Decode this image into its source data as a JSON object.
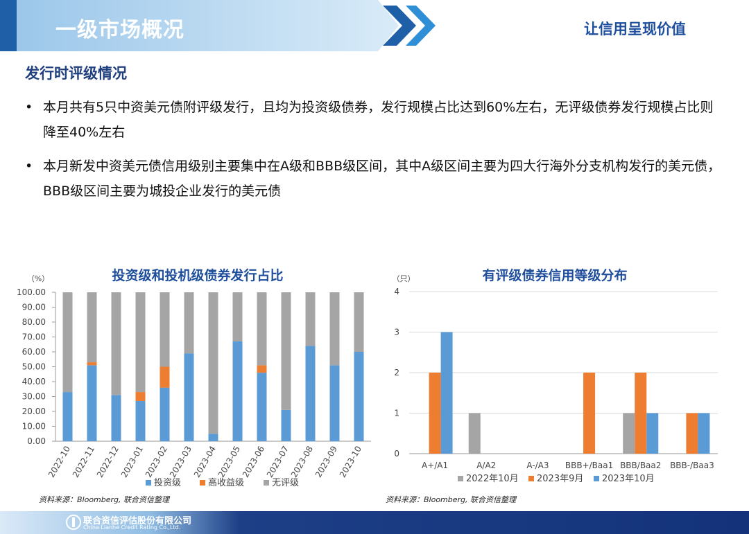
{
  "header": {
    "title": "一级市场概况",
    "slogan": "让信用呈现价值"
  },
  "section_title": "发行时评级情况",
  "bullets": [
    "本月共有5只中资美元债附评级发行，且均为投资级债券，发行规模占比达到60%左右，无评级债券发行规模占比则降至40%左右",
    "本月新发中资美元债信用级别主要集中在A级和BBB级区间，其中A级区间主要为四大行海外分支机构发行的美元债，BBB级区间主要为城投企业发行的美元债"
  ],
  "footer": {
    "company": "联合资信评估股份有限公司",
    "company_en": "China Lianhe Credit Rating Co.,Ltd."
  },
  "chart_data": [
    {
      "type": "bar",
      "stacked": true,
      "title": "投资级和投机级债券发行占比",
      "y_label": "（%）",
      "source": "资料来源：Bloomberg, 联合资信整理",
      "categories": [
        "2022-10",
        "2022-11",
        "2022-12",
        "2023-01",
        "2023-02",
        "2023-03",
        "2023-04",
        "2023-05",
        "2023-06",
        "2023-07",
        "2023-08",
        "2023-09",
        "2023-10"
      ],
      "series": [
        {
          "name": "投资级",
          "color": "#5b9bd5",
          "values": [
            33,
            51,
            31,
            27,
            36,
            59,
            5,
            67,
            46,
            21,
            64,
            51,
            60
          ]
        },
        {
          "name": "高收益级",
          "color": "#ed7d31",
          "values": [
            0,
            2,
            0,
            6,
            14,
            0,
            0,
            0,
            5,
            0,
            0,
            0,
            0
          ]
        },
        {
          "name": "无评级",
          "color": "#a5a5a5",
          "values": [
            67,
            47,
            69,
            67,
            50,
            41,
            95,
            33,
            49,
            79,
            36,
            49,
            40
          ]
        }
      ],
      "ylim": [
        0,
        100
      ],
      "yticks": [
        {
          "value": 0,
          "label": "0.00"
        },
        {
          "value": 10,
          "label": "10.00"
        },
        {
          "value": 20,
          "label": "20.00"
        },
        {
          "value": 30,
          "label": "30.00"
        },
        {
          "value": 40,
          "label": "40.00"
        },
        {
          "value": 50,
          "label": "50.00"
        },
        {
          "value": 60,
          "label": "60.00"
        },
        {
          "value": 70,
          "label": "70.00"
        },
        {
          "value": 80,
          "label": "80.00"
        },
        {
          "value": 90,
          "label": "90.00"
        },
        {
          "value": 100,
          "label": "100.00"
        }
      ],
      "grid": false
    },
    {
      "type": "bar",
      "stacked": false,
      "title": "有评级债券信用等级分布",
      "y_label": "（只）",
      "source": "资料来源：Bloomberg, 联合资信整理",
      "categories": [
        "A+/A1",
        "A/A2",
        "A-/A3",
        "BBB+/Baa1",
        "BBB/Baa2",
        "BBB-/Baa3"
      ],
      "series": [
        {
          "name": "2022年10月",
          "color": "#a5a5a5",
          "values": [
            0,
            1,
            0,
            0,
            1,
            0
          ]
        },
        {
          "name": "2023年9月",
          "color": "#ed7d31",
          "values": [
            2,
            0,
            0,
            2,
            2,
            1
          ]
        },
        {
          "name": "2023年10月",
          "color": "#5b9bd5",
          "values": [
            3,
            0,
            0,
            0,
            1,
            1
          ]
        }
      ],
      "ylim": [
        0,
        4
      ],
      "yticks": [
        0,
        1,
        2,
        3,
        4
      ],
      "grid": true
    }
  ]
}
